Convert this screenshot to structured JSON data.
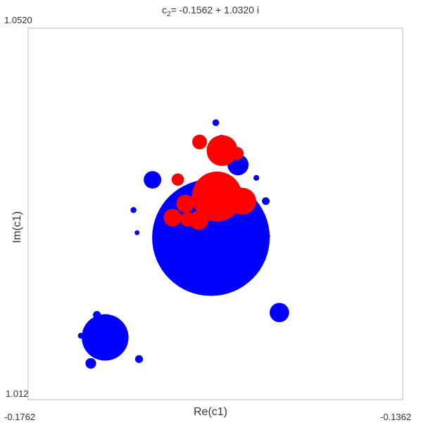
{
  "chart_data": {
    "type": "scatter",
    "title_prefix": "c",
    "title_subscript": "2",
    "title_value": "= -0.1562 + 1.0320 i",
    "xlabel": "Re(c1)",
    "ylabel": "Im(c1)",
    "xlim": [
      -0.1762,
      -0.1362
    ],
    "ylim": [
      1.012,
      1.052
    ],
    "xlim_labels": [
      "-0.1762",
      "-0.1362"
    ],
    "ylim_labels": [
      "1.0120",
      "1.0520"
    ],
    "grid": false,
    "colors": {
      "set": "#0000ff",
      "subset": "#ff0000",
      "frame": "#bbbbbb"
    },
    "series": [
      {
        "color": "#0000ff",
        "regions": [
          {
            "cx": -0.15668,
            "cy": 1.02945,
            "r": 0.00628
          },
          {
            "cx": -0.16798,
            "cy": 1.0187,
            "r": 0.0025
          },
          {
            "cx": -0.16292,
            "cy": 1.03567,
            "r": 0.00094
          },
          {
            "cx": -0.15379,
            "cy": 1.03729,
            "r": 0.00113
          },
          {
            "cx": -0.14937,
            "cy": 1.02138,
            "r": 0.00104
          },
          {
            "cx": -0.16951,
            "cy": 1.01591,
            "r": 0.00057
          },
          {
            "cx": -0.16436,
            "cy": 1.01637,
            "r": 0.00042
          },
          {
            "cx": -0.16886,
            "cy": 1.02113,
            "r": 0.00042
          },
          {
            "cx": -0.17058,
            "cy": 1.01889,
            "r": 0.00031
          },
          {
            "cx": -0.15554,
            "cy": 1.03999,
            "r": 0.00052
          },
          {
            "cx": -0.15616,
            "cy": 1.04182,
            "r": 0.00036
          },
          {
            "cx": -0.15082,
            "cy": 1.03338,
            "r": 0.00041
          },
          {
            "cx": -0.15183,
            "cy": 1.03588,
            "r": 0.00031
          },
          {
            "cx": -0.16495,
            "cy": 1.03242,
            "r": 0.00032
          },
          {
            "cx": -0.16457,
            "cy": 1.02998,
            "r": 0.00026
          },
          {
            "cx": -0.15057,
            "cy": 1.02962,
            "r": 0.00021
          }
        ]
      },
      {
        "color": "#ff0000",
        "regions": [
          {
            "cx": -0.15603,
            "cy": 1.03387,
            "r": 0.00269
          },
          {
            "cx": -0.15329,
            "cy": 1.03336,
            "r": 0.00144
          },
          {
            "cx": -0.15548,
            "cy": 1.03882,
            "r": 0.00166
          },
          {
            "cx": -0.15799,
            "cy": 1.03131,
            "r": 0.00103
          },
          {
            "cx": -0.15917,
            "cy": 1.0314,
            "r": 0.00078
          },
          {
            "cx": -0.15942,
            "cy": 1.0331,
            "r": 0.00096
          },
          {
            "cx": -0.16078,
            "cy": 1.0316,
            "r": 0.00095
          },
          {
            "cx": -0.16022,
            "cy": 1.0357,
            "r": 0.00066
          },
          {
            "cx": -0.15789,
            "cy": 1.03975,
            "r": 0.00079
          },
          {
            "cx": -0.15389,
            "cy": 1.0385,
            "r": 0.00071
          }
        ]
      }
    ]
  }
}
